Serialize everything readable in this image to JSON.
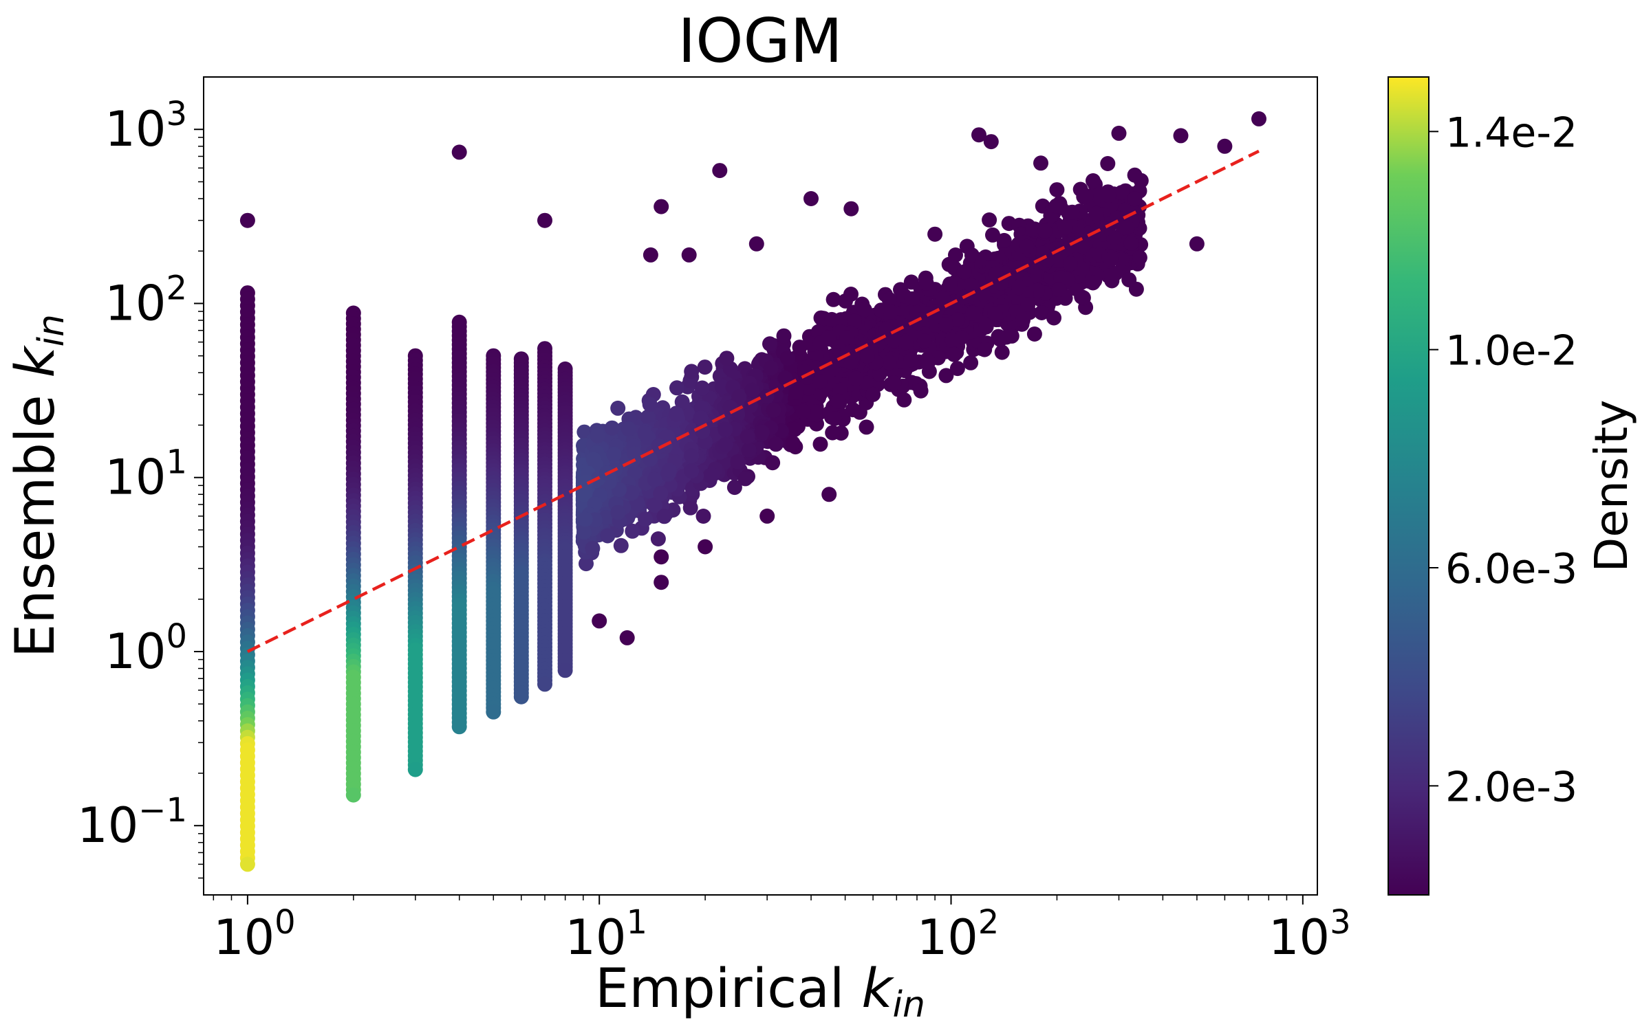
{
  "chart_data": {
    "type": "scatter",
    "title": "IOGM",
    "xlabel": "Empirical k_in",
    "ylabel": "Ensemble k_in",
    "x_scale": "log",
    "y_scale": "log",
    "xlim": [
      0.75,
      1100
    ],
    "ylim": [
      0.04,
      2000
    ],
    "x_ticks": [
      {
        "value": 1,
        "base": "10",
        "exp": "0"
      },
      {
        "value": 10,
        "base": "10",
        "exp": "1"
      },
      {
        "value": 100,
        "base": "10",
        "exp": "2"
      },
      {
        "value": 1000,
        "base": "10",
        "exp": "3"
      }
    ],
    "y_ticks": [
      {
        "value": 0.1,
        "base": "10",
        "exp": "−1"
      },
      {
        "value": 1,
        "base": "10",
        "exp": "0"
      },
      {
        "value": 10,
        "base": "10",
        "exp": "1"
      },
      {
        "value": 100,
        "base": "10",
        "exp": "2"
      },
      {
        "value": 1000,
        "base": "10",
        "exp": "3"
      }
    ],
    "reference_line": {
      "x": [
        1,
        750
      ],
      "y": [
        1,
        750
      ],
      "color": "#e8211d",
      "style": "dashed"
    },
    "colorbar": {
      "label": "Density",
      "colormap": "viridis",
      "range": [
        0,
        0.015
      ],
      "ticks": [
        {
          "value": 0.002,
          "label": "2.0e-3"
        },
        {
          "value": 0.006,
          "label": "6.0e-3"
        },
        {
          "value": 0.01,
          "label": "1.0e-2"
        },
        {
          "value": 0.014,
          "label": "1.4e-2"
        }
      ]
    },
    "columns": [
      {
        "x": 1,
        "ymin": 0.06,
        "ymax": 115,
        "density_peak": 0.0148
      },
      {
        "x": 2,
        "ymin": 0.15,
        "ymax": 88,
        "density_peak": 0.0125
      },
      {
        "x": 3,
        "ymin": 0.21,
        "ymax": 50,
        "density_peak": 0.0095
      },
      {
        "x": 4,
        "ymin": 0.37,
        "ymax": 78,
        "density_peak": 0.0075
      },
      {
        "x": 5,
        "ymin": 0.45,
        "ymax": 50,
        "density_peak": 0.006
      },
      {
        "x": 6,
        "ymin": 0.55,
        "ymax": 48,
        "density_peak": 0.0045
      },
      {
        "x": 7,
        "ymin": 0.65,
        "ymax": 55,
        "density_peak": 0.0035
      },
      {
        "x": 8,
        "ymin": 0.78,
        "ymax": 42,
        "density_peak": 0.003
      }
    ],
    "points": [
      {
        "x": 1,
        "y": 300
      },
      {
        "x": 4,
        "y": 740
      },
      {
        "x": 7,
        "y": 300
      },
      {
        "x": 22,
        "y": 580
      },
      {
        "x": 120,
        "y": 930
      },
      {
        "x": 130,
        "y": 850
      },
      {
        "x": 200,
        "y": 450
      },
      {
        "x": 300,
        "y": 950
      },
      {
        "x": 450,
        "y": 920
      },
      {
        "x": 600,
        "y": 800
      },
      {
        "x": 750,
        "y": 1150
      },
      {
        "x": 500,
        "y": 220
      },
      {
        "x": 15,
        "y": 360
      },
      {
        "x": 40,
        "y": 400
      },
      {
        "x": 52,
        "y": 350
      },
      {
        "x": 28,
        "y": 220
      },
      {
        "x": 18,
        "y": 190
      },
      {
        "x": 14,
        "y": 190
      },
      {
        "x": 180,
        "y": 640
      },
      {
        "x": 90,
        "y": 250
      },
      {
        "x": 160,
        "y": 80
      },
      {
        "x": 60,
        "y": 30
      },
      {
        "x": 45,
        "y": 8
      },
      {
        "x": 30,
        "y": 6
      },
      {
        "x": 20,
        "y": 4
      },
      {
        "x": 15,
        "y": 2.5
      },
      {
        "x": 10,
        "y": 1.5
      },
      {
        "x": 12,
        "y": 1.2
      },
      {
        "x": 15,
        "y": 3.5
      }
    ],
    "dense_cloud": {
      "x_range": [
        9,
        350
      ],
      "slope": 1.0,
      "spread_decades": 0.45
    }
  }
}
